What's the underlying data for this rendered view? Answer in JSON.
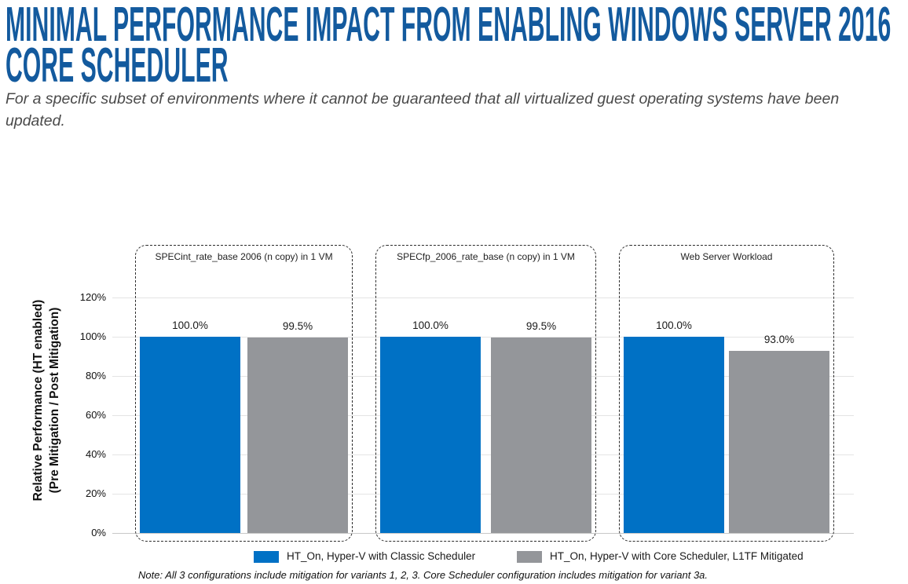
{
  "header": {
    "title_line1": "MINIMAL PERFORMANCE IMPACT FROM ENABLING WINDOWS SERVER 2016",
    "title_line2": "CORE SCHEDULER",
    "subtitle": "For a specific subset of environments where it cannot be guaranteed that all virtualized guest operating systems have been updated."
  },
  "colors": {
    "title_blue": "#135A9E",
    "bar_blue": "#0071C5",
    "bar_gray": "#94969A",
    "gridline": "#E4E4E4",
    "axis_line": "#C8C8C8"
  },
  "chart_data": {
    "type": "bar",
    "title": "",
    "ylabel_lines": [
      "Relative Performance (HT enabled)",
      "(Pre Mitigation / Post Mitigation)"
    ],
    "ylabel": "Relative Performance (HT enabled) (Pre Mitigation / Post Mitigation)",
    "xlabel": "",
    "ylim": [
      0,
      130
    ],
    "yticks": [
      {
        "value": 0,
        "label": "0%"
      },
      {
        "value": 20,
        "label": "20%"
      },
      {
        "value": 40,
        "label": "40%"
      },
      {
        "value": 60,
        "label": "60%"
      },
      {
        "value": 80,
        "label": "80%"
      },
      {
        "value": 100,
        "label": "100%"
      },
      {
        "value": 120,
        "label": "120%"
      }
    ],
    "grid": "horizontal",
    "legend_position": "bottom",
    "series": [
      {
        "name": "HT_On, Hyper-V with Classic Scheduler",
        "color": "#0071C5"
      },
      {
        "name": "HT_On, Hyper-V with Core Scheduler, L1TF Mitigated",
        "color": "#94969A"
      }
    ],
    "panels": [
      {
        "title": "SPECint_rate_base 2006 (n copy) in 1 VM",
        "values": [
          100.0,
          99.5
        ],
        "labels": [
          "100.0%",
          "99.5%"
        ]
      },
      {
        "title": "SPECfp_2006_rate_base (n copy) in 1 VM",
        "values": [
          100.0,
          99.5
        ],
        "labels": [
          "100.0%",
          "99.5%"
        ]
      },
      {
        "title": "Web Server Workload",
        "values": [
          100.0,
          93.0
        ],
        "labels": [
          "100.0%",
          "93.0%"
        ]
      }
    ]
  },
  "footnote": "Note: All 3 configurations include mitigation for variants 1, 2, 3. Core Scheduler configuration includes mitigation for variant 3a."
}
